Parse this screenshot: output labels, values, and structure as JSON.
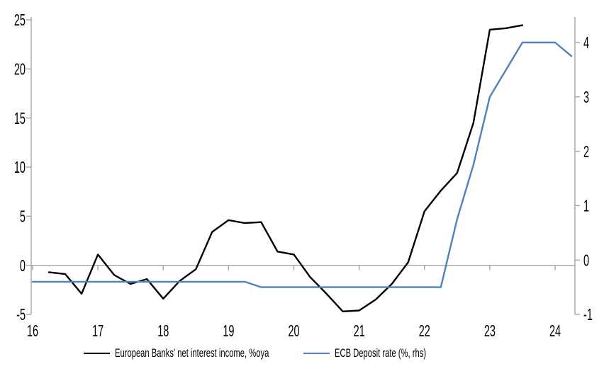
{
  "chart_data": {
    "type": "line",
    "title": "",
    "legend_position": "bottom",
    "grid": "zero-line-only",
    "x_axis": {
      "min": 16,
      "max": 24.3,
      "ticks": [
        16,
        17,
        18,
        19,
        20,
        21,
        22,
        23,
        24
      ],
      "labels": [
        "16",
        "17",
        "18",
        "19",
        "20",
        "21",
        "22",
        "23",
        "24"
      ]
    },
    "left_axis": {
      "min": -5,
      "max": 25,
      "ticks": [
        25,
        20,
        15,
        10,
        5,
        0,
        -5
      ]
    },
    "right_axis": {
      "min": -1,
      "max": 4.417,
      "ticks": [
        4,
        3,
        2,
        1,
        0,
        -1
      ]
    },
    "series": [
      {
        "name": "European Banks' net interest income, %oya",
        "color": "#000000",
        "axis": "left",
        "x": [
          16.25,
          16.5,
          16.75,
          17,
          17.25,
          17.5,
          17.75,
          18,
          18.25,
          18.5,
          18.75,
          19,
          19.25,
          19.5,
          19.75,
          20,
          20.25,
          20.5,
          20.75,
          21,
          21.25,
          21.5,
          21.75,
          22,
          22.25,
          22.5,
          22.75,
          23,
          23.25,
          23.5
        ],
        "y": [
          -0.7,
          -0.9,
          -2.9,
          1.1,
          -1.0,
          -1.9,
          -1.4,
          -3.4,
          -1.6,
          -0.4,
          3.4,
          4.6,
          4.3,
          4.4,
          1.4,
          1.1,
          -1.2,
          -2.9,
          -4.7,
          -4.6,
          -3.5,
          -1.9,
          0.3,
          5.5,
          7.6,
          9.4,
          14.5,
          24.0,
          24.15,
          24.45
        ]
      },
      {
        "name": "ECB Deposit rate (%, rhs)",
        "color": "#4f81bd",
        "axis": "right",
        "x": [
          16,
          16.25,
          16.5,
          16.75,
          17,
          17.25,
          17.5,
          17.75,
          18,
          18.25,
          18.5,
          18.75,
          19,
          19.25,
          19.5,
          19.75,
          20,
          20.25,
          20.5,
          20.75,
          21,
          21.25,
          21.5,
          21.75,
          22,
          22.25,
          22.5,
          22.75,
          23,
          23.25,
          23.5,
          23.75,
          24,
          24.25
        ],
        "y": [
          -0.4,
          -0.4,
          -0.4,
          -0.4,
          -0.4,
          -0.4,
          -0.4,
          -0.4,
          -0.4,
          -0.4,
          -0.4,
          -0.4,
          -0.4,
          -0.4,
          -0.5,
          -0.5,
          -0.5,
          -0.5,
          -0.5,
          -0.5,
          -0.5,
          -0.5,
          -0.5,
          -0.5,
          -0.5,
          -0.5,
          0.75,
          1.75,
          3.0,
          3.5,
          4.0,
          4.0,
          4.0,
          3.75
        ]
      }
    ]
  },
  "colors": {
    "axis": "#a6a6a6",
    "text": "#000000",
    "background": "#ffffff"
  }
}
